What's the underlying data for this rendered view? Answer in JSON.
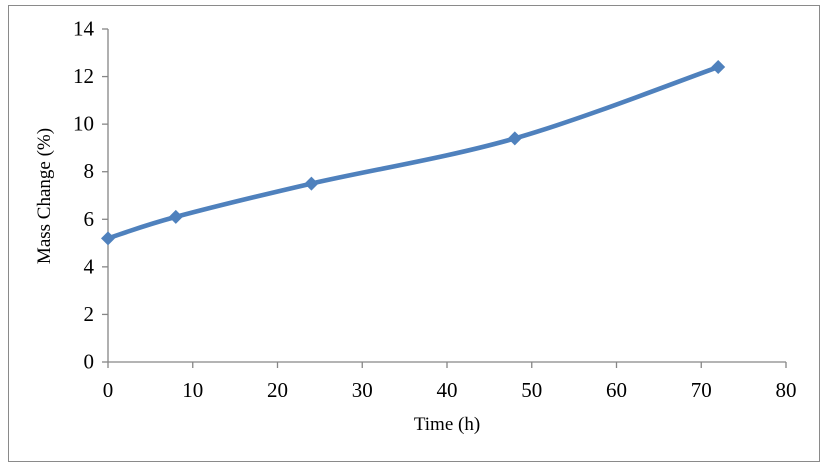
{
  "chart_data": {
    "type": "line",
    "title": "",
    "xlabel": "Time (h)",
    "ylabel": "Mass Change (%)",
    "x": [
      0,
      8,
      24,
      48,
      72
    ],
    "y": [
      5.2,
      6.1,
      7.5,
      9.4,
      12.4
    ],
    "xlim": [
      0,
      80
    ],
    "ylim": [
      0,
      14
    ],
    "x_ticks": [
      0,
      10,
      20,
      30,
      40,
      50,
      60,
      70,
      80
    ],
    "y_ticks": [
      0,
      2,
      4,
      6,
      8,
      10,
      12,
      14
    ],
    "grid": false,
    "legend": false,
    "smooth_line": true,
    "marker": "diamond",
    "line_color": "#4F81BD",
    "marker_color": "#4F81BD",
    "axis_color": "#868686",
    "tick_label_color": "#000000",
    "frame_border_color": "#8A8A8A",
    "plot_background": "#FFFFFF"
  }
}
